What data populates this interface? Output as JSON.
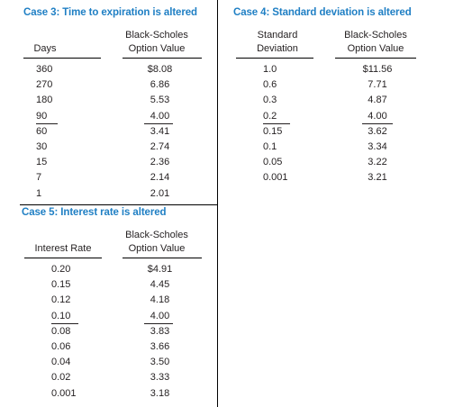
{
  "case3": {
    "title": "Case 3: Time to expiration is altered",
    "col1_header": [
      "Days"
    ],
    "col2_header": [
      "Black-Scholes",
      "Option Value"
    ],
    "rows": [
      [
        "360",
        "$8.08"
      ],
      [
        "270",
        "6.86"
      ],
      [
        "180",
        "5.53"
      ],
      [
        "90",
        "4.00"
      ],
      [
        "60",
        "3.41"
      ],
      [
        "30",
        "2.74"
      ],
      [
        "15",
        "2.36"
      ],
      [
        "7",
        "2.14"
      ],
      [
        "1",
        "2.01"
      ]
    ]
  },
  "case4": {
    "title": "Case 4: Standard deviation is altered",
    "col1_header": [
      "Standard",
      "Deviation"
    ],
    "col2_header": [
      "Black-Scholes",
      "Option Value"
    ],
    "rows": [
      [
        "1.0",
        "$11.56"
      ],
      [
        "0.6",
        "7.71"
      ],
      [
        "0.3",
        "4.87"
      ],
      [
        "0.2",
        "4.00"
      ],
      [
        "0.15",
        "3.62"
      ],
      [
        "0.1",
        "3.34"
      ],
      [
        "0.05",
        "3.22"
      ],
      [
        "0.001",
        "3.21"
      ]
    ]
  },
  "case5": {
    "title": "Case 5: Interest rate is altered",
    "col1_header": [
      "Interest Rate"
    ],
    "col2_header": [
      "Black-Scholes",
      "Option Value"
    ],
    "rows": [
      [
        "0.20",
        "$4.91"
      ],
      [
        "0.15",
        "4.45"
      ],
      [
        "0.12",
        "4.18"
      ],
      [
        "0.10",
        "4.00"
      ],
      [
        "0.08",
        "3.83"
      ],
      [
        "0.06",
        "3.66"
      ],
      [
        "0.04",
        "3.50"
      ],
      [
        "0.02",
        "3.33"
      ],
      [
        "0.001",
        "3.18"
      ]
    ]
  }
}
